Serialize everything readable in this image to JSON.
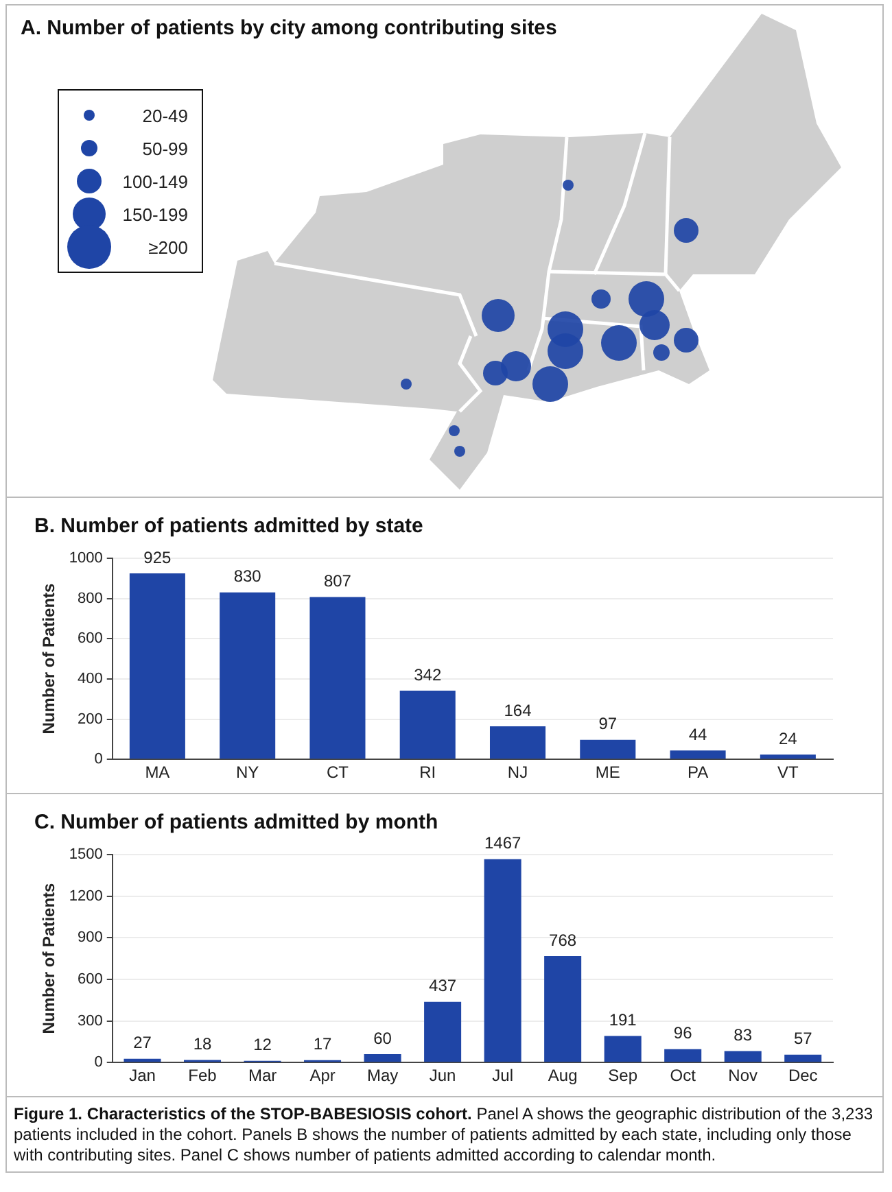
{
  "chart_data": [
    {
      "type": "other",
      "title": "A. Number of patients by city among contributing sites",
      "annotations": [
        "20-49",
        "50-99",
        "100-149",
        "150-199",
        "≥200"
      ]
    },
    {
      "type": "bar",
      "title": "B. Number of patients admitted by state",
      "ylabel": "Number of Patients",
      "categories": [
        "MA",
        "NY",
        "CT",
        "RI",
        "NJ",
        "ME",
        "PA",
        "VT"
      ],
      "values": [
        925,
        830,
        807,
        342,
        164,
        97,
        44,
        24
      ],
      "color": "#1f45a6",
      "ylim": [
        0,
        1000
      ],
      "yticks": [
        0,
        200,
        400,
        600,
        800,
        1000
      ],
      "grid": "y",
      "data_labels": true
    },
    {
      "type": "bar",
      "title": "C. Number of patients admitted by month",
      "ylabel": "Number of Patients",
      "categories": [
        "Jan",
        "Feb",
        "Mar",
        "Apr",
        "May",
        "Jun",
        "Jul",
        "Aug",
        "Sep",
        "Oct",
        "Nov",
        "Dec"
      ],
      "values": [
        27,
        18,
        12,
        17,
        60,
        437,
        1467,
        768,
        191,
        96,
        83,
        57
      ],
      "color": "#1f45a6",
      "ylim": [
        0,
        1500
      ],
      "yticks": [
        0,
        300,
        600,
        900,
        1200,
        1500
      ],
      "grid": "y",
      "data_labels": true,
      "annotations": [
        "Figure 1. Characteristics of the STOP-BABESIOSIS cohort.",
        "Panel A shows the geographic distribution of the 3,233 patients included in the cohort. Panels B shows the number of patients admitted by each state, including only those with contributing sites. Panel C shows number of patients admitted according to calendar month."
      ]
    }
  ]
}
